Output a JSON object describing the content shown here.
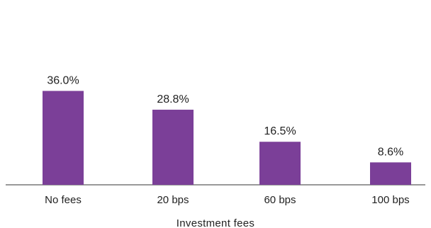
{
  "chart_data": {
    "type": "bar",
    "categories": [
      "No fees",
      "20 bps",
      "60 bps",
      "100 bps"
    ],
    "values": [
      36.0,
      28.8,
      16.5,
      8.6
    ],
    "value_labels": [
      "36.0%",
      "28.8%",
      "16.5%",
      "8.6%"
    ],
    "title": "",
    "xlabel": "Investment fees",
    "ylabel": "",
    "ylim": [
      0,
      60
    ],
    "grid": false,
    "legend": "none",
    "bar_color": "#7b3f98",
    "axis_color": "#333333"
  }
}
